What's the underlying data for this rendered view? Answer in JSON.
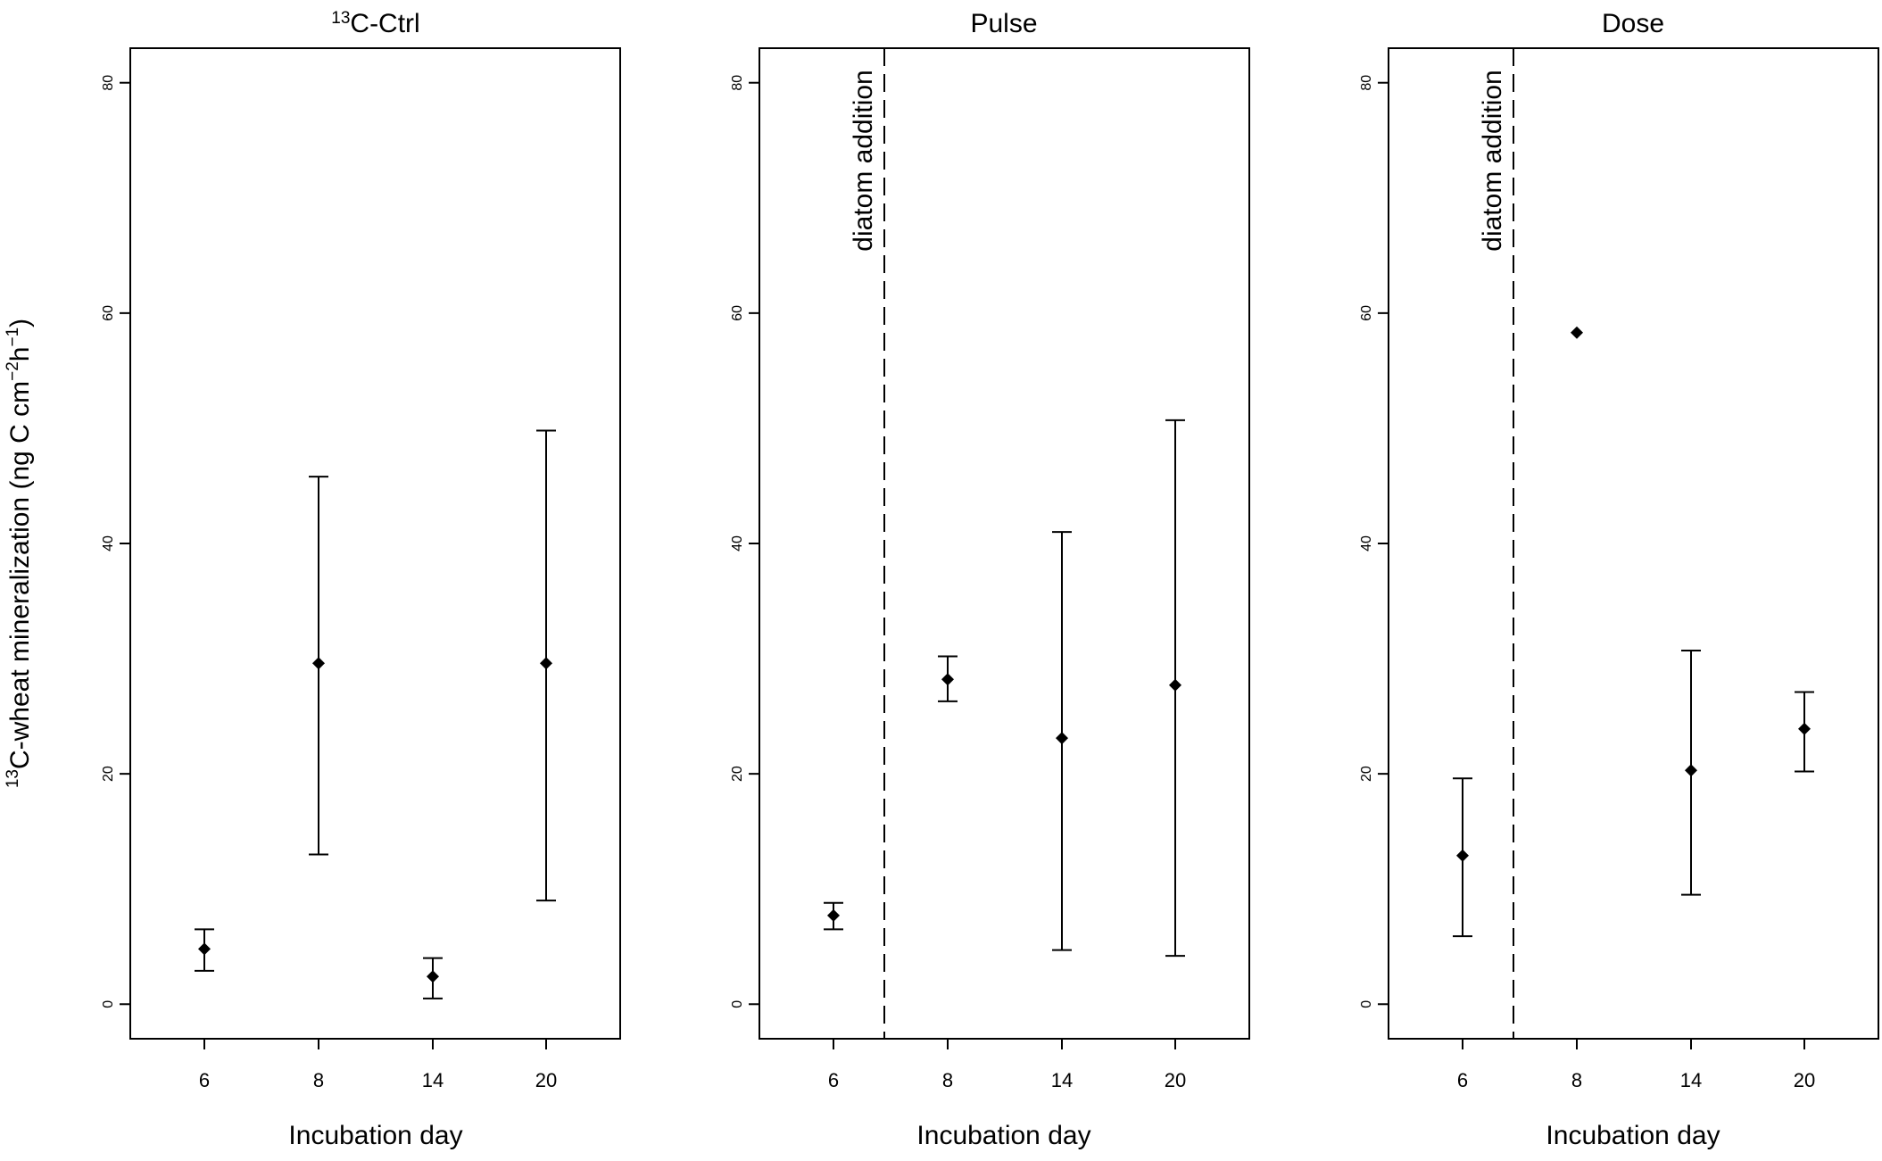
{
  "ylabel": {
    "iso": "13",
    "main": "C-wheat mineralization (ng C cm",
    "exp1": "−2",
    "mid": "h",
    "exp2": "−1",
    "close": ")"
  },
  "xlabel": "Incubation day",
  "colors": {
    "ink": "#000000",
    "background": "#ffffff"
  },
  "chart_data": [
    {
      "type": "scatter",
      "title_iso": "13",
      "title": "C-Ctrl",
      "xlabel": "Incubation day",
      "categories": [
        "6",
        "8",
        "14",
        "20"
      ],
      "ylim": [
        -3,
        83
      ],
      "yticks": [
        "0",
        "20",
        "40",
        "60",
        "80"
      ],
      "series": [
        {
          "values": [
            4.8,
            29.6,
            2.4,
            29.6
          ],
          "lower": [
            2.9,
            13.0,
            0.5,
            9.0
          ],
          "upper": [
            6.5,
            45.8,
            4.0,
            49.8
          ]
        }
      ],
      "annotation": null
    },
    {
      "type": "scatter",
      "title_iso": "",
      "title": "Pulse",
      "xlabel": "Incubation day",
      "categories": [
        "6",
        "8",
        "14",
        "20"
      ],
      "ylim": [
        -3,
        83
      ],
      "yticks": [
        "0",
        "20",
        "40",
        "60",
        "80"
      ],
      "series": [
        {
          "values": [
            7.7,
            28.2,
            23.1,
            27.7
          ],
          "lower": [
            6.5,
            26.3,
            4.7,
            4.2
          ],
          "upper": [
            8.8,
            30.2,
            41.0,
            50.7
          ]
        }
      ],
      "annotation": {
        "text": "diatom addition",
        "after_category_index": 0
      }
    },
    {
      "type": "scatter",
      "title_iso": "",
      "title": "Dose",
      "xlabel": "Incubation day",
      "categories": [
        "6",
        "8",
        "14",
        "20"
      ],
      "ylim": [
        -3,
        83
      ],
      "yticks": [
        "0",
        "20",
        "40",
        "60",
        "80"
      ],
      "series": [
        {
          "values": [
            12.9,
            58.3,
            20.3,
            23.9
          ],
          "lower": [
            5.9,
            null,
            9.5,
            20.2
          ],
          "upper": [
            19.6,
            null,
            30.7,
            27.1
          ]
        }
      ],
      "annotation": {
        "text": "diatom addition",
        "after_category_index": 0
      }
    }
  ]
}
